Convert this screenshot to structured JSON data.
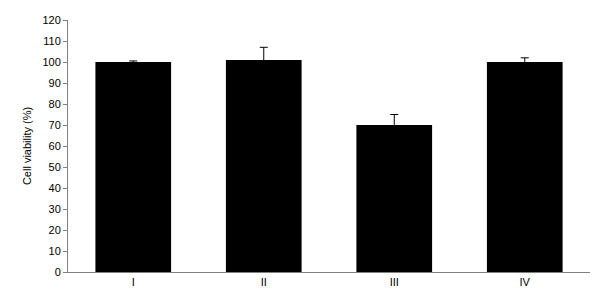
{
  "chart_data": {
    "type": "bar",
    "y_label": "Cell viability (%)",
    "categories": [
      "I",
      "II",
      "III",
      "IV"
    ],
    "values": [
      100,
      101,
      70,
      100
    ],
    "errors": [
      0.5,
      6,
      5,
      2
    ],
    "color": "#000000",
    "ylim": [
      0,
      120
    ],
    "yticks": [
      0,
      10,
      20,
      30,
      40,
      50,
      60,
      70,
      80,
      90,
      100,
      110,
      120
    ],
    "grid": false
  }
}
